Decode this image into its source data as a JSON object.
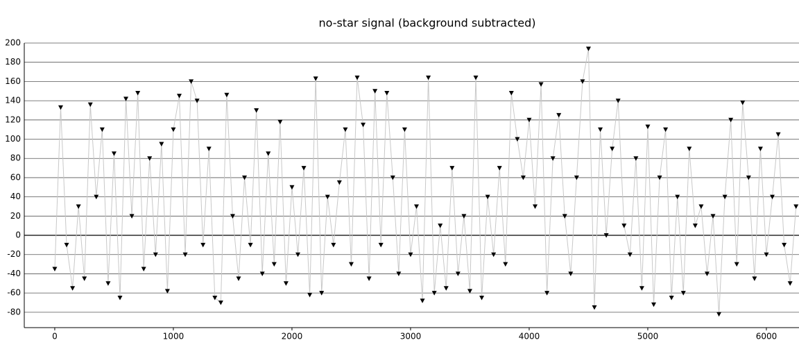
{
  "chart_data": {
    "type": "line",
    "title": "no-star signal (background subtracted)",
    "x": [
      0,
      50,
      100,
      150,
      200,
      250,
      300,
      350,
      400,
      450,
      500,
      550,
      600,
      650,
      700,
      750,
      800,
      850,
      900,
      950,
      1000,
      1050,
      1100,
      1150,
      1200,
      1250,
      1300,
      1350,
      1400,
      1450,
      1500,
      1550,
      1600,
      1650,
      1700,
      1750,
      1800,
      1850,
      1900,
      1950,
      2000,
      2050,
      2100,
      2150,
      2200,
      2250,
      2300,
      2350,
      2400,
      2450,
      2500,
      2550,
      2600,
      2650,
      2700,
      2750,
      2800,
      2850,
      2900,
      2950,
      3000,
      3050,
      3100,
      3150,
      3200,
      3250,
      3300,
      3350,
      3400,
      3450,
      3500,
      3550,
      3600,
      3650,
      3700,
      3750,
      3800,
      3850,
      3900,
      3950,
      4000,
      4050,
      4100,
      4150,
      4200,
      4250,
      4300,
      4350,
      4400,
      4450,
      4500,
      4550,
      4600,
      4650,
      4700,
      4750,
      4800,
      4850,
      4900,
      4950,
      5000,
      5050,
      5100,
      5150,
      5200,
      5250,
      5300,
      5350,
      5400,
      5450,
      5500,
      5550,
      5600,
      5650,
      5700,
      5750,
      5800,
      5850,
      5900,
      5950,
      6000,
      6050,
      6100,
      6150,
      6200,
      6250
    ],
    "series": [
      {
        "color": "#000000",
        "line_color": "#c8c8c8",
        "values": [
          -35,
          133,
          -10,
          -55,
          30,
          -45,
          136,
          40,
          110,
          -50,
          85,
          -65,
          142,
          20,
          148,
          -35,
          80,
          -20,
          95,
          -58,
          110,
          145,
          -20,
          160,
          140,
          -10,
          90,
          -65,
          -70,
          146,
          20,
          -45,
          60,
          -10,
          130,
          -40,
          85,
          -30,
          118,
          -50,
          50,
          -20,
          70,
          -62,
          163,
          -60,
          40,
          -10,
          55,
          110,
          -30,
          164,
          115,
          -45,
          150,
          -10,
          148,
          60,
          -40,
          110,
          -20,
          30,
          -68,
          164,
          -60,
          10,
          -55,
          70,
          -40,
          20,
          -58,
          164,
          -65,
          40,
          -20,
          70,
          -30,
          148,
          100,
          60,
          120,
          30,
          157,
          -60,
          80,
          125,
          20,
          -40,
          60,
          160,
          194,
          -75,
          110,
          0,
          90,
          140,
          10,
          -20,
          80,
          -55,
          113,
          -72,
          60,
          110,
          -65,
          40,
          -60,
          90,
          10,
          30,
          -40,
          20,
          -82,
          40,
          120,
          -30,
          138,
          60,
          -45,
          90,
          -20,
          40,
          105,
          -10,
          -50,
          30
        ]
      }
    ],
    "xlim": [
      -257,
      6275
    ],
    "ylim": [
      -96,
      200
    ],
    "xticks": [
      0,
      1000,
      2000,
      3000,
      4000,
      5000,
      6000
    ],
    "yticks": [
      -80,
      -60,
      -40,
      -20,
      0,
      20,
      40,
      60,
      80,
      100,
      120,
      140,
      160,
      180,
      200
    ],
    "grid": true
  }
}
